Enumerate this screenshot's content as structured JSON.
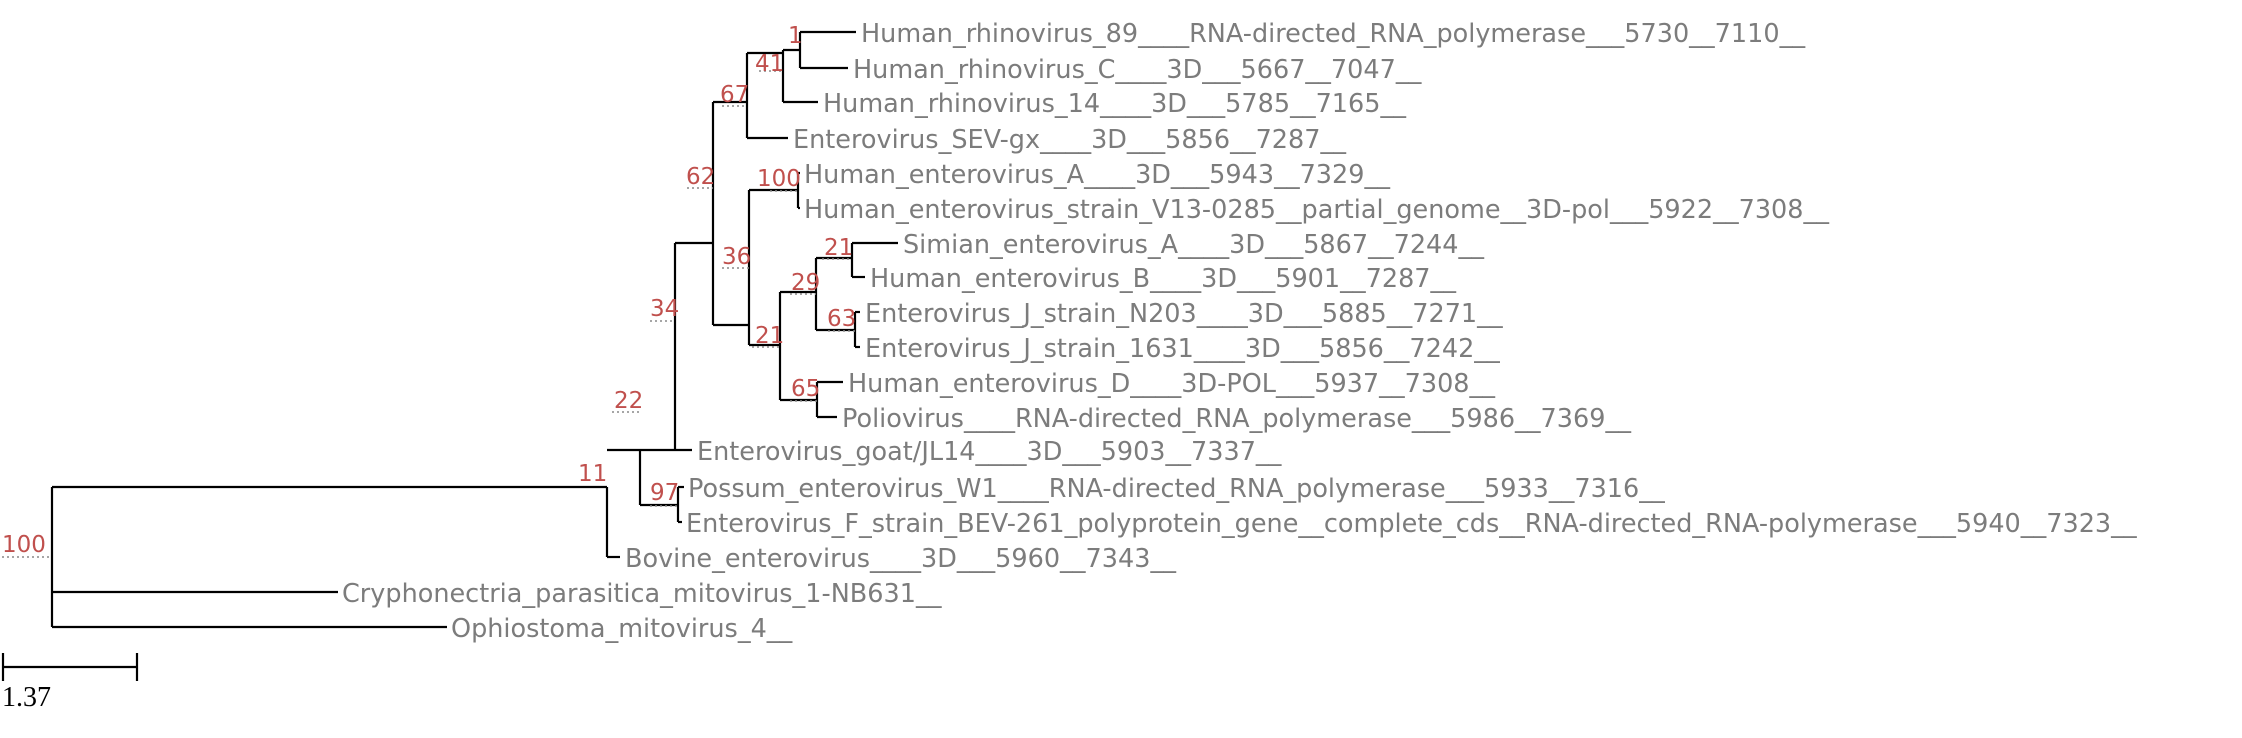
{
  "tree": {
    "root_support": "100",
    "leaves": [
      {
        "id": "L1",
        "label": "Human_rhinovirus_89____RNA-directed_RNA_polymerase___5730__7110__"
      },
      {
        "id": "L2",
        "label": "Human_rhinovirus_C____3D___5667__7047__"
      },
      {
        "id": "L3",
        "label": "Human_rhinovirus_14____3D___5785__7165__"
      },
      {
        "id": "L4",
        "label": "Enterovirus_SEV-gx____3D___5856__7287__"
      },
      {
        "id": "L5",
        "label": "Human_enterovirus_A____3D___5943__7329__"
      },
      {
        "id": "L6",
        "label": "Human_enterovirus_strain_V13-0285__partial_genome__3D-pol___5922__7308__"
      },
      {
        "id": "L7",
        "label": "Simian_enterovirus_A____3D___5867__7244__"
      },
      {
        "id": "L8",
        "label": "Human_enterovirus_B____3D___5901__7287__"
      },
      {
        "id": "L9",
        "label": "Enterovirus_J_strain_N203____3D___5885__7271__"
      },
      {
        "id": "L10",
        "label": "Enterovirus_J_strain_1631____3D___5856__7242__"
      },
      {
        "id": "L11",
        "label": "Human_enterovirus_D____3D-POL___5937__7308__"
      },
      {
        "id": "L12",
        "label": "Poliovirus____RNA-directed_RNA_polymerase___5986__7369__"
      },
      {
        "id": "L13",
        "label": "Enterovirus_goat/JL14____3D___5903__7337__"
      },
      {
        "id": "L14",
        "label": "Possum_enterovirus_W1____RNA-directed_RNA_polymerase___5933__7316__"
      },
      {
        "id": "L15",
        "label": "Enterovirus_F_strain_BEV-261_polyprotein_gene__complete_cds__RNA-directed_RNA-polymerase___5940__7323__"
      },
      {
        "id": "L16",
        "label": "Bovine_enterovirus____3D___5960__7343__"
      },
      {
        "id": "L17",
        "label": "Cryphonectria_parasitica_mitovirus_1-NB631__"
      },
      {
        "id": "L18",
        "label": "Ophiostoma_mitovirus_4__"
      }
    ],
    "support_values": [
      {
        "node": "n_rhino_89_C",
        "value": "1"
      },
      {
        "node": "n_rhino",
        "value": "41"
      },
      {
        "node": "n_rhino_sev",
        "value": "67"
      },
      {
        "node": "n_ev_a",
        "value": "100"
      },
      {
        "node": "n_simian_b",
        "value": "21"
      },
      {
        "node": "n_j",
        "value": "63"
      },
      {
        "node": "n_b_j",
        "value": "29"
      },
      {
        "node": "n_d_polio",
        "value": "65"
      },
      {
        "node": "n_b_d",
        "value": "21"
      },
      {
        "node": "n_a_bd",
        "value": "36"
      },
      {
        "node": "n_core",
        "value": "62"
      },
      {
        "node": "n_core_goat",
        "value": "34"
      },
      {
        "node": "n_possum_f",
        "value": "97"
      },
      {
        "node": "n_ef",
        "value": "22"
      },
      {
        "node": "n_entero",
        "value": "11"
      }
    ]
  },
  "scale": {
    "label": "1.37"
  },
  "colors": {
    "branch": "#000000",
    "leaf_label": "#7c7c7c",
    "support": "#c0504d"
  }
}
